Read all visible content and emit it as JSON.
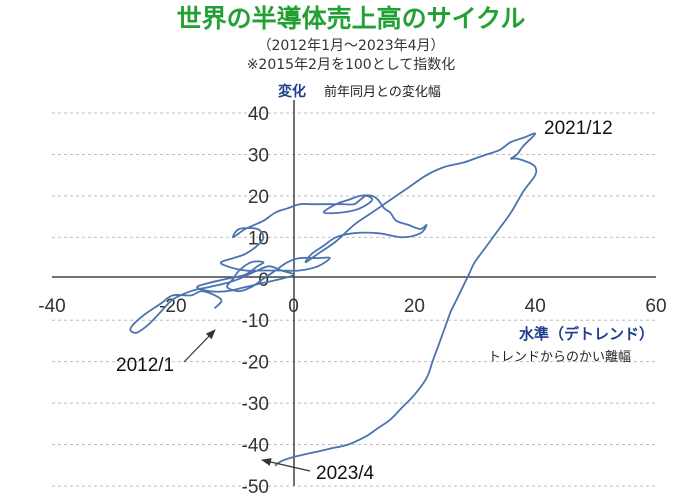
{
  "chart_data": {
    "type": "line",
    "title": "世界の半導体売上高のサイクル",
    "subtitle_1": "（2012年1月～2023年4月）",
    "subtitle_2": "※2015年2月を100として指数化",
    "ylabel": "変化",
    "ylabel_note": "前年同月との変化幅",
    "xlabel": "水準（デトレンド）",
    "xlabel_note": "トレンドからのかい離幅",
    "xlim": [
      -40,
      60
    ],
    "ylim": [
      -50,
      40
    ],
    "xticks": [
      -40,
      -20,
      0,
      20,
      40,
      60
    ],
    "yticks": [
      -50,
      -40,
      -30,
      -20,
      -10,
      0,
      10,
      20,
      30,
      40
    ],
    "grid": "horizontal dashed",
    "series": [
      {
        "color": "#4a73b0",
        "points": [
          [
            -13,
            -7
          ],
          [
            -12,
            -5
          ],
          [
            -15,
            -3
          ],
          [
            -17,
            -4
          ],
          [
            -20,
            -4
          ],
          [
            -22,
            -6
          ],
          [
            -25,
            -9
          ],
          [
            -27,
            -12
          ],
          [
            -26,
            -13
          ],
          [
            -24,
            -11
          ],
          [
            -22,
            -8
          ],
          [
            -20,
            -5
          ],
          [
            -17,
            -3
          ],
          [
            -14,
            -2
          ],
          [
            -11,
            -1
          ],
          [
            -9,
            0
          ],
          [
            -6,
            2
          ],
          [
            -4,
            3
          ],
          [
            -2,
            2
          ],
          [
            0,
            1
          ],
          [
            -2,
            0
          ],
          [
            -5,
            -1
          ],
          [
            -8,
            -2
          ],
          [
            -11,
            -3
          ],
          [
            -14,
            -3
          ],
          [
            -16,
            -2
          ],
          [
            -14,
            -1
          ],
          [
            -11,
            0
          ],
          [
            -8,
            1
          ],
          [
            -6,
            3
          ],
          [
            -5,
            4
          ],
          [
            -7,
            4
          ],
          [
            -9,
            2
          ],
          [
            -10,
            0
          ],
          [
            -11,
            -2
          ],
          [
            -9,
            -3
          ],
          [
            -7,
            -2
          ],
          [
            -5,
            0
          ],
          [
            -3,
            2
          ],
          [
            -1,
            4
          ],
          [
            1,
            5
          ],
          [
            4,
            5
          ],
          [
            6,
            5
          ],
          [
            4,
            3
          ],
          [
            1,
            2
          ],
          [
            -2,
            2
          ],
          [
            -5,
            2
          ],
          [
            -8,
            2
          ],
          [
            -11,
            3
          ],
          [
            -12,
            4
          ],
          [
            -10,
            5
          ],
          [
            -8,
            6
          ],
          [
            -6,
            8
          ],
          [
            -5,
            10
          ],
          [
            -6,
            12
          ],
          [
            -9,
            12
          ],
          [
            -10,
            10
          ],
          [
            -8,
            12
          ],
          [
            -5,
            14
          ],
          [
            -3,
            16
          ],
          [
            -1,
            17
          ],
          [
            1,
            18
          ],
          [
            3,
            18
          ],
          [
            5,
            18
          ],
          [
            8,
            18
          ],
          [
            10,
            18
          ],
          [
            11,
            19
          ],
          [
            12,
            20
          ],
          [
            13,
            19
          ],
          [
            11,
            17
          ],
          [
            8,
            16
          ],
          [
            5,
            16
          ],
          [
            7,
            18
          ],
          [
            9,
            19
          ],
          [
            11,
            20
          ],
          [
            13,
            20
          ],
          [
            14,
            19
          ],
          [
            15,
            17
          ],
          [
            16,
            16
          ],
          [
            17,
            14
          ],
          [
            19,
            13
          ],
          [
            21,
            12
          ],
          [
            22,
            13
          ],
          [
            21,
            11
          ],
          [
            18,
            10
          ],
          [
            14,
            11
          ],
          [
            10,
            11
          ],
          [
            7,
            10
          ],
          [
            5,
            8
          ],
          [
            3,
            6
          ],
          [
            2,
            4
          ],
          [
            4,
            6
          ],
          [
            7,
            9
          ],
          [
            10,
            13
          ],
          [
            13,
            16
          ],
          [
            16,
            19
          ],
          [
            19,
            22
          ],
          [
            22,
            25
          ],
          [
            25,
            27
          ],
          [
            28,
            28
          ],
          [
            30,
            29
          ],
          [
            32,
            30
          ],
          [
            34,
            31
          ],
          [
            35,
            32
          ],
          [
            36,
            33
          ],
          [
            38,
            34
          ],
          [
            40,
            35
          ],
          [
            38,
            32
          ],
          [
            37,
            30
          ],
          [
            36,
            29
          ],
          [
            37,
            29
          ],
          [
            39,
            28
          ],
          [
            40,
            27
          ],
          [
            40,
            25
          ],
          [
            38,
            21
          ],
          [
            36,
            16
          ],
          [
            34,
            12
          ],
          [
            32,
            8
          ],
          [
            30,
            4
          ],
          [
            29,
            1
          ],
          [
            28,
            -2
          ],
          [
            27,
            -5
          ],
          [
            26,
            -8
          ],
          [
            25,
            -12
          ],
          [
            24,
            -16
          ],
          [
            23,
            -20
          ],
          [
            22,
            -24
          ],
          [
            20,
            -28
          ],
          [
            18,
            -31
          ],
          [
            16,
            -34
          ],
          [
            14,
            -36
          ],
          [
            12,
            -38
          ],
          [
            9,
            -40
          ],
          [
            6,
            -41
          ],
          [
            3,
            -42
          ],
          [
            0,
            -43
          ],
          [
            -2,
            -44
          ],
          [
            -3,
            -45
          ]
        ]
      }
    ],
    "annotations": [
      {
        "text": "2021/12"
      },
      {
        "text": "2012/1"
      },
      {
        "text": "2023/4"
      }
    ]
  }
}
